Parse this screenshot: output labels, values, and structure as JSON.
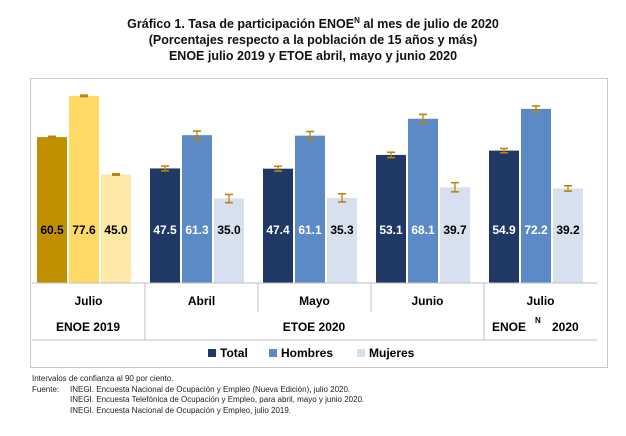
{
  "title": {
    "line1_pre": "Gráfico 1. Tasa de participación ENOE",
    "line1_sup": "N",
    "line1_post": " al mes de julio de 2020",
    "line2": "(Porcentajes respecto a la población de 15 años y más)",
    "line3": "ENOE julio 2019 y ETOE abril, mayo y junio  2020"
  },
  "colors": {
    "enoe2019": [
      "#c09000",
      "#ffd966",
      "#fde8a6"
    ],
    "etoe": [
      "#1f3864",
      "#5b8ac6",
      "#d6e0ef"
    ],
    "errorbar": "#b8860b"
  },
  "chart_data": {
    "type": "bar",
    "categories": [
      "Julio",
      "Abril",
      "Mayo",
      "Junio",
      "Julio"
    ],
    "groups": [
      {
        "label": "ENOE 2019",
        "span": [
          0,
          0
        ]
      },
      {
        "label": "ETOE 2020",
        "span": [
          1,
          3
        ]
      },
      {
        "label_pre": "ENOE",
        "label_sup": "N",
        "label_post": "2020",
        "span": [
          4,
          4
        ]
      }
    ],
    "series": [
      {
        "name": "Total",
        "values": [
          60.5,
          47.5,
          47.4,
          53.1,
          54.9
        ]
      },
      {
        "name": "Hombres",
        "values": [
          77.6,
          61.3,
          61.1,
          68.1,
          72.2
        ]
      },
      {
        "name": "Mujeres",
        "values": [
          45.0,
          35.0,
          35.3,
          39.7,
          39.2
        ]
      }
    ],
    "error_margin": [
      [
        0.3,
        1.0,
        1.0,
        1.1,
        0.9
      ],
      [
        0.3,
        1.7,
        1.7,
        1.8,
        1.2
      ],
      [
        0.3,
        1.7,
        1.7,
        1.9,
        1.1
      ]
    ],
    "ylim": [
      0,
      85
    ],
    "legend_position": "bottom"
  },
  "notes": {
    "ci": "Intervalos de confianza al 90 por ciento.",
    "source_label": "Fuente:",
    "source1": "INEGI. Encuesta Nacional de Ocupación y Empleo (Nueva Edición), julio 2020.",
    "source2": "INEGI. Encuesta Telefónica de Ocupación y Empleo, para abril, mayo y junio 2020.",
    "source3": "INEGI. Encuesta Nacional de Ocupación y Empleo, julio 2019."
  }
}
